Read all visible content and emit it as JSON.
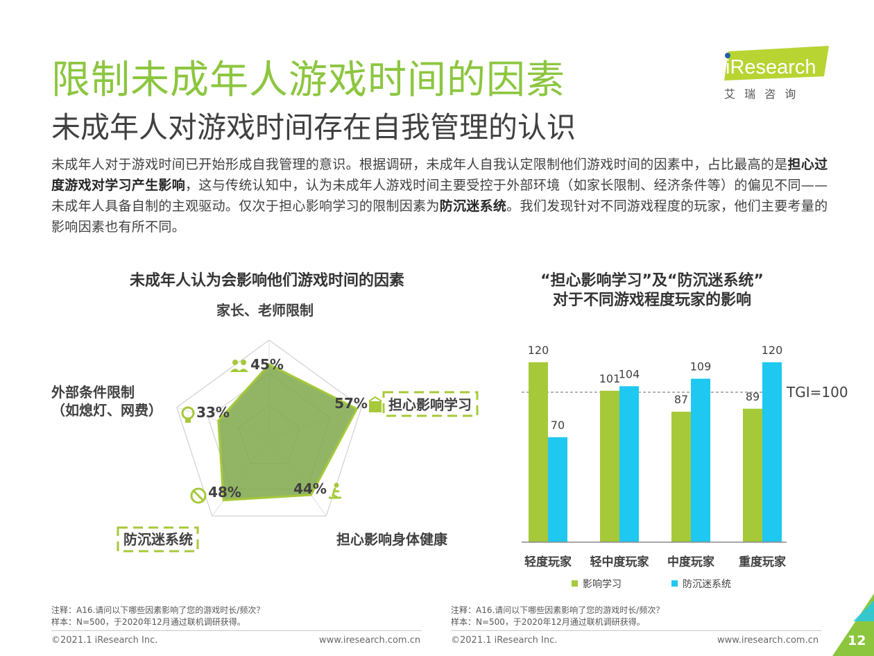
{
  "header": {
    "title": "限制未成年人游戏时间的因素",
    "subtitle": "未成年人对游戏时间存在自我管理的认识"
  },
  "logo": {
    "brand": "iResearch",
    "chinese": "艾 瑞 咨 询"
  },
  "body": {
    "p1": "未成年人对于游戏时间已开始形成自我管理的意识。根据调研，未成年人自我认定限制他们游戏时间的因素中，占比最高的是",
    "b1": "担心过度游戏对学习产生影响",
    "p2": "，这与传统认知中，认为未成年人游戏时间主要受控于外部环境（如家长限制、经济条件等）的偏见不同——未成年人具备自制的主观驱动。仅次于担心影响学习的限制因素为",
    "b2": "防沉迷系统",
    "p3": "。我们发现针对不同游戏程度的玩家，他们主要考量的影响因素也有所不同。"
  },
  "chart_data": [
    {
      "type": "radar",
      "title": "未成年人认为会影响他们游戏时间的因素",
      "axes": [
        {
          "label": "家长、老师限制",
          "value": 45,
          "value_label": "45%",
          "icon": "parents-icon"
        },
        {
          "label": "担心影响学习",
          "value": 57,
          "value_label": "57%",
          "icon": "study-icon",
          "highlight": true
        },
        {
          "label": "担心影响身体健康",
          "value": 44,
          "value_label": "44%",
          "icon": "exercise-icon"
        },
        {
          "label": "防沉迷系统",
          "value": 48,
          "value_label": "48%",
          "icon": "ban-icon",
          "highlight": true
        },
        {
          "label": "外部条件限制",
          "label2": "（如熄灯、网费）",
          "value": 33,
          "value_label": "33%",
          "icon": "lightbulb-icon"
        }
      ],
      "max": 60,
      "fill_color": "#7fa84a",
      "line_color": "#a6c93a"
    },
    {
      "type": "bar",
      "title_line1": "“担心影响学习”及“防沉迷系统”",
      "title_line2": "对于不同游戏程度玩家的影响",
      "categories": [
        "轻度玩家",
        "轻中度玩家",
        "中度玩家",
        "重度玩家"
      ],
      "series": [
        {
          "name": "影响学习",
          "color": "#a6c93a",
          "values": [
            120,
            101,
            87,
            89
          ]
        },
        {
          "name": "防沉迷系统",
          "color": "#1ec8f0",
          "values": [
            70,
            104,
            109,
            120
          ]
        }
      ],
      "reference": {
        "value": 100,
        "label": "TGI=100"
      },
      "ylim": [
        0,
        125
      ]
    }
  ],
  "notes": {
    "left_line1": "注释：A16.请问以下哪些因素影响了您的游戏时长/频次？",
    "left_line2": "样本：N=500，于2020年12月通过联机调研获得。",
    "right_line1": "注释：A16.请问以下哪些因素影响了您的游戏时长/频次？",
    "right_line2": "样本：N=500，于2020年12月通过联机调研获得。"
  },
  "footer": {
    "copyright_left": "©2021.1 iResearch Inc.",
    "url_left": "www.iresearch.com.cn",
    "copyright_right": "©2021.1 iResearch Inc.",
    "url_right": "www.iresearch.com.cn",
    "page_number": "12"
  }
}
